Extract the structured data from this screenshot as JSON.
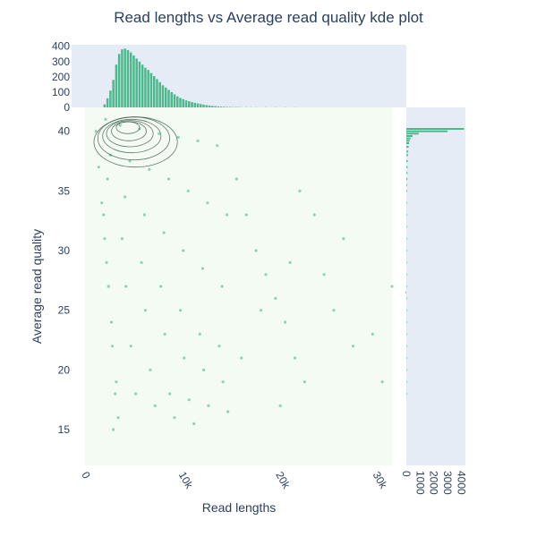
{
  "chart_data": {
    "type": "scatter",
    "title": "Read lengths vs Average read quality kde plot",
    "xlabel": "Read lengths",
    "ylabel": "Average read quality",
    "xlim": [
      -1000,
      32000
    ],
    "ylim": [
      12,
      42
    ],
    "x_ticks": [
      {
        "value": 0,
        "label": "0"
      },
      {
        "value": 10000,
        "label": "10k"
      },
      {
        "value": 20000,
        "label": "20k"
      },
      {
        "value": 30000,
        "label": "30k"
      }
    ],
    "y_ticks": [
      {
        "value": 15,
        "label": "15"
      },
      {
        "value": 20,
        "label": "20"
      },
      {
        "value": 25,
        "label": "25"
      },
      {
        "value": 30,
        "label": "30"
      },
      {
        "value": 35,
        "label": "35"
      },
      {
        "value": 40,
        "label": "40"
      }
    ],
    "colors": {
      "points": "#3cb37f",
      "bars": "#4cb88c",
      "kde": "#2f4f3f",
      "main_bg": "#f4fbf3",
      "marginal_bg": "#e5ecf6"
    },
    "scatter_points": [
      [
        2500,
        41
      ],
      [
        4000,
        40.5
      ],
      [
        6000,
        40.2
      ],
      [
        8000,
        39.8
      ],
      [
        10000,
        39.5
      ],
      [
        12000,
        39.2
      ],
      [
        14000,
        38.8
      ],
      [
        3000,
        38
      ],
      [
        5000,
        37.5
      ],
      [
        7000,
        36.8
      ],
      [
        9000,
        36
      ],
      [
        11000,
        35
      ],
      [
        13000,
        34
      ],
      [
        15000,
        33
      ],
      [
        2700,
        36
      ],
      [
        4500,
        34.5
      ],
      [
        6500,
        33
      ],
      [
        8500,
        31.5
      ],
      [
        10500,
        30
      ],
      [
        12500,
        28.5
      ],
      [
        14500,
        27
      ],
      [
        2300,
        33
      ],
      [
        4200,
        31
      ],
      [
        6200,
        29
      ],
      [
        8200,
        27
      ],
      [
        10200,
        25
      ],
      [
        12200,
        23
      ],
      [
        14200,
        22
      ],
      [
        2600,
        29
      ],
      [
        4600,
        27
      ],
      [
        6600,
        25
      ],
      [
        8600,
        23
      ],
      [
        10600,
        21
      ],
      [
        12600,
        20
      ],
      [
        14600,
        19
      ],
      [
        3100,
        24
      ],
      [
        5100,
        22
      ],
      [
        7100,
        20
      ],
      [
        9100,
        18
      ],
      [
        11100,
        17.5
      ],
      [
        13100,
        17
      ],
      [
        15100,
        16.5
      ],
      [
        3600,
        19
      ],
      [
        5600,
        18
      ],
      [
        7600,
        17
      ],
      [
        9600,
        16
      ],
      [
        11600,
        15.5
      ],
      [
        3300,
        15
      ],
      [
        16000,
        36
      ],
      [
        17000,
        33
      ],
      [
        18000,
        30
      ],
      [
        19000,
        28
      ],
      [
        20000,
        26
      ],
      [
        21000,
        24
      ],
      [
        22000,
        21
      ],
      [
        23000,
        19
      ],
      [
        24000,
        33
      ],
      [
        25000,
        28
      ],
      [
        26000,
        25
      ],
      [
        27000,
        31
      ],
      [
        28000,
        22
      ],
      [
        30000,
        23
      ],
      [
        31000,
        19
      ],
      [
        32000,
        27
      ],
      [
        33500,
        26.5
      ],
      [
        16500,
        21
      ],
      [
        18500,
        25
      ],
      [
        20500,
        17
      ],
      [
        21500,
        29
      ],
      [
        22500,
        35
      ],
      [
        1500,
        40
      ],
      [
        1800,
        37
      ],
      [
        2100,
        34
      ],
      [
        2400,
        31
      ],
      [
        2800,
        27
      ],
      [
        3200,
        22
      ],
      [
        3500,
        18
      ],
      [
        3800,
        16
      ]
    ],
    "kde_contours": [
      {
        "cx": 4800,
        "cy": 40.3,
        "rx": 1200,
        "ry": 0.5
      },
      {
        "cx": 4900,
        "cy": 40.0,
        "rx": 1800,
        "ry": 0.8
      },
      {
        "cx": 5000,
        "cy": 39.8,
        "rx": 2400,
        "ry": 1.1
      },
      {
        "cx": 5200,
        "cy": 39.6,
        "rx": 3000,
        "ry": 1.4
      },
      {
        "cx": 5400,
        "cy": 39.4,
        "rx": 3700,
        "ry": 1.8
      },
      {
        "cx": 5600,
        "cy": 39.1,
        "rx": 4300,
        "ry": 2.1
      }
    ],
    "top_histogram": {
      "bin_width": 230,
      "bins": [
        [
          2400,
          20
        ],
        [
          2700,
          60
        ],
        [
          3000,
          110
        ],
        [
          3300,
          180
        ],
        [
          3600,
          280
        ],
        [
          3900,
          350
        ],
        [
          4200,
          380
        ],
        [
          4500,
          385
        ],
        [
          4800,
          375
        ],
        [
          5100,
          360
        ],
        [
          5400,
          340
        ],
        [
          5700,
          320
        ],
        [
          6000,
          300
        ],
        [
          6300,
          280
        ],
        [
          6600,
          260
        ],
        [
          6900,
          245
        ],
        [
          7200,
          225
        ],
        [
          7500,
          205
        ],
        [
          7800,
          185
        ],
        [
          8100,
          165
        ],
        [
          8400,
          145
        ],
        [
          8700,
          130
        ],
        [
          9000,
          115
        ],
        [
          9300,
          100
        ],
        [
          9600,
          85
        ],
        [
          9900,
          72
        ],
        [
          10200,
          62
        ],
        [
          10500,
          54
        ],
        [
          10800,
          46
        ],
        [
          11100,
          40
        ],
        [
          11400,
          35
        ],
        [
          11700,
          30
        ],
        [
          12000,
          26
        ],
        [
          12300,
          22
        ],
        [
          12600,
          18
        ],
        [
          12900,
          15
        ],
        [
          13200,
          12
        ],
        [
          13500,
          10
        ],
        [
          13800,
          8
        ],
        [
          14100,
          6
        ],
        [
          14400,
          5
        ],
        [
          14700,
          4
        ],
        [
          15000,
          3
        ],
        [
          15300,
          3
        ],
        [
          15600,
          2
        ],
        [
          15900,
          2
        ],
        [
          16200,
          2
        ],
        [
          16500,
          1
        ],
        [
          17000,
          1
        ],
        [
          17500,
          1
        ],
        [
          18000,
          1
        ],
        [
          19000,
          1
        ],
        [
          20000,
          1
        ],
        [
          21000,
          1
        ],
        [
          22000,
          1
        ]
      ],
      "ticks": [
        0,
        100,
        200,
        300,
        400
      ],
      "ylim": [
        0,
        410
      ]
    },
    "right_histogram": {
      "bin_height": 0.15,
      "bins": [
        [
          40.2,
          4200
        ],
        [
          40.0,
          3000
        ],
        [
          39.8,
          900
        ],
        [
          39.6,
          450
        ],
        [
          39.4,
          300
        ],
        [
          39.2,
          240
        ],
        [
          39.0,
          200
        ],
        [
          38.7,
          170
        ],
        [
          38.3,
          140
        ],
        [
          38.0,
          120
        ],
        [
          37.5,
          100
        ],
        [
          37.0,
          90
        ],
        [
          36.5,
          80
        ],
        [
          36.0,
          70
        ],
        [
          35.5,
          60
        ],
        [
          35.0,
          52
        ],
        [
          34.0,
          44
        ],
        [
          33.0,
          36
        ],
        [
          32.0,
          30
        ],
        [
          31.0,
          26
        ],
        [
          30.0,
          22
        ],
        [
          29.0,
          18
        ],
        [
          28.0,
          15
        ],
        [
          27.0,
          13
        ],
        [
          26.0,
          11
        ],
        [
          25.0,
          9
        ],
        [
          24.0,
          8
        ],
        [
          23.0,
          6
        ],
        [
          22.0,
          5
        ],
        [
          21.0,
          4
        ],
        [
          20.0,
          3
        ],
        [
          19.0,
          2
        ],
        [
          18.0,
          1
        ]
      ],
      "ticks": [
        {
          "value": 0,
          "label": "0"
        },
        {
          "value": 1000,
          "label": "1000"
        },
        {
          "value": 2000,
          "label": "2000"
        },
        {
          "value": 3000,
          "label": "3000"
        },
        {
          "value": 4000,
          "label": "4000"
        }
      ],
      "xlim": [
        0,
        4300
      ]
    }
  }
}
